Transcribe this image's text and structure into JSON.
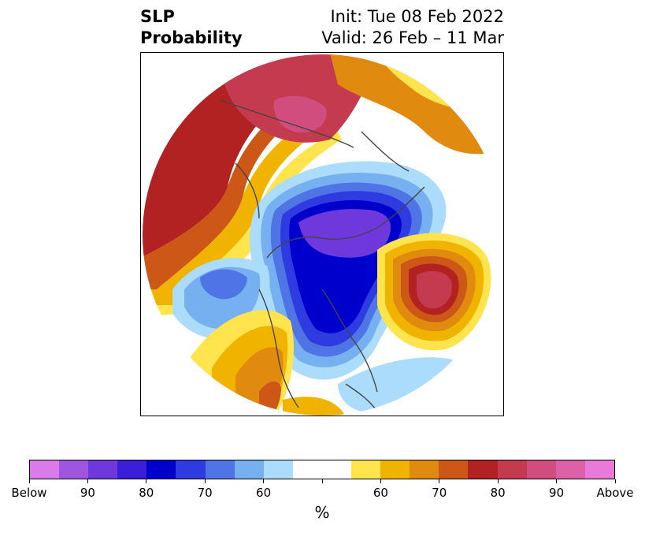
{
  "title": {
    "left_line1": "SLP",
    "left_line2": "Probability",
    "right_line1": "Init: Tue 08 Feb 2022",
    "right_line2": "Valid: 26 Feb – 11 Mar"
  },
  "colorbar": {
    "unit": "%",
    "colors": [
      "#d97be8",
      "#9f55e0",
      "#6f38dc",
      "#3a1ed8",
      "#0000cd",
      "#2d3be0",
      "#4f74e6",
      "#77b0f0",
      "#abdcfb",
      "#ffffff",
      "#ffffff",
      "#ffe44d",
      "#f0b400",
      "#e08a10",
      "#cc5716",
      "#b22222",
      "#c43a4e",
      "#d14d7e",
      "#dc62a8",
      "#ea7ad9"
    ],
    "tick_labels": [
      "Below",
      "90",
      "80",
      "70",
      "60",
      "",
      "60",
      "70",
      "80",
      "90",
      "Above"
    ]
  },
  "map": {
    "projection": "north-polar-stereographic",
    "colors": {
      "deep_blue": "#0000cd",
      "blue": "#2d3be0",
      "mid_blue": "#4f74e6",
      "light_blue": "#77b0f0",
      "pale_blue": "#abdcfb",
      "purple": "#6f38dc",
      "yellow": "#ffe44d",
      "gold": "#f0b400",
      "orange": "#e08a10",
      "dark_orange": "#cc5716",
      "red": "#b22222",
      "crimson": "#c43a4e",
      "pink": "#d14d7e"
    }
  }
}
